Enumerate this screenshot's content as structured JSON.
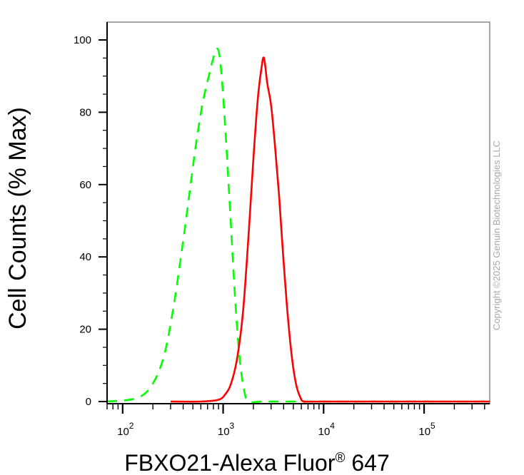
{
  "chart_data": {
    "type": "line",
    "xlabel": "FBXO21-Alexa Fluor",
    "xlabel_mark": "®",
    "xlabel_suffix": " 647",
    "ylabel": "Cell Counts (% Max)",
    "x_scale": "log",
    "xlim": [
      70,
      450000
    ],
    "ylim": [
      0,
      100
    ],
    "y_ticks": [
      0,
      20,
      40,
      60,
      80,
      100
    ],
    "y_tick_labels": [
      "0",
      "20",
      "40",
      "60",
      "80",
      "100"
    ],
    "x_ticks": [
      100,
      1000,
      10000,
      100000
    ],
    "x_tick_bases": [
      "10",
      "10",
      "10",
      "10"
    ],
    "x_tick_exponents": [
      "2",
      "3",
      "4",
      "5"
    ],
    "grid": false,
    "legend": "none",
    "watermark": "Copyright ©2025 Genuin Biotechnologies LLC",
    "series": [
      {
        "color": "#00ff00",
        "style": "dashed",
        "points": [
          [
            70,
            0
          ],
          [
            140,
            1
          ],
          [
            200,
            5
          ],
          [
            260,
            13
          ],
          [
            320,
            26
          ],
          [
            380,
            40
          ],
          [
            450,
            55
          ],
          [
            530,
            70
          ],
          [
            620,
            82
          ],
          [
            720,
            90
          ],
          [
            820,
            96
          ],
          [
            900,
            97
          ],
          [
            980,
            88
          ],
          [
            1080,
            70
          ],
          [
            1200,
            48
          ],
          [
            1320,
            28
          ],
          [
            1460,
            12
          ],
          [
            1620,
            3
          ],
          [
            1800,
            0
          ],
          [
            2500,
            0
          ],
          [
            6000,
            0
          ],
          [
            450000,
            0
          ]
        ]
      },
      {
        "color": "#ff0000",
        "style": "solid",
        "points": [
          [
            300,
            0
          ],
          [
            600,
            0
          ],
          [
            900,
            0.5
          ],
          [
            1050,
            2
          ],
          [
            1200,
            5
          ],
          [
            1380,
            12
          ],
          [
            1580,
            25
          ],
          [
            1800,
            47
          ],
          [
            2000,
            67
          ],
          [
            2200,
            83
          ],
          [
            2400,
            92
          ],
          [
            2550,
            95
          ],
          [
            2750,
            88
          ],
          [
            3000,
            82
          ],
          [
            3300,
            70
          ],
          [
            3600,
            57
          ],
          [
            3900,
            43
          ],
          [
            4300,
            27
          ],
          [
            4800,
            13
          ],
          [
            5300,
            5
          ],
          [
            5900,
            1
          ],
          [
            6500,
            0
          ],
          [
            10000,
            0
          ],
          [
            450000,
            0
          ]
        ]
      }
    ]
  }
}
